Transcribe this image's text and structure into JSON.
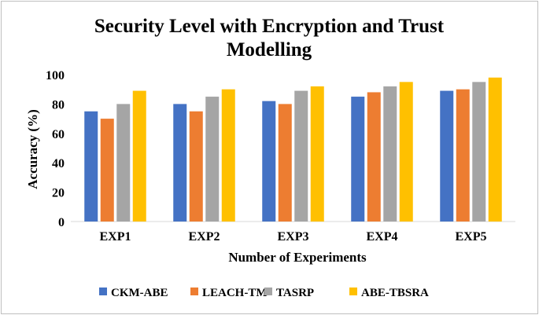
{
  "chart_data": {
    "type": "bar",
    "title_lines": [
      "Security Level with Encryption and Trust",
      "Modelling"
    ],
    "xlabel": "Number of Experiments",
    "ylabel": "Accuracy (%)",
    "ylim": [
      0,
      100
    ],
    "yticks": [
      "0",
      "20",
      "40",
      "60",
      "80",
      "100"
    ],
    "grid": false,
    "legend_position": "bottom",
    "categories": [
      "EXP1",
      "EXP2",
      "EXP3",
      "EXP4",
      "EXP5"
    ],
    "series": [
      {
        "name": "CKM-ABE",
        "color": "#4472c4",
        "values": [
          75,
          80,
          82,
          85,
          89
        ]
      },
      {
        "name": "LEACH-TM",
        "color": "#ed7d31",
        "values": [
          70,
          75,
          80,
          88,
          90
        ]
      },
      {
        "name": "TASRP",
        "color": "#a5a5a5",
        "values": [
          80,
          85,
          89,
          92,
          95
        ]
      },
      {
        "name": "ABE-TBSRA",
        "color": "#ffc000",
        "values": [
          89,
          90,
          92,
          95,
          98
        ]
      }
    ]
  }
}
